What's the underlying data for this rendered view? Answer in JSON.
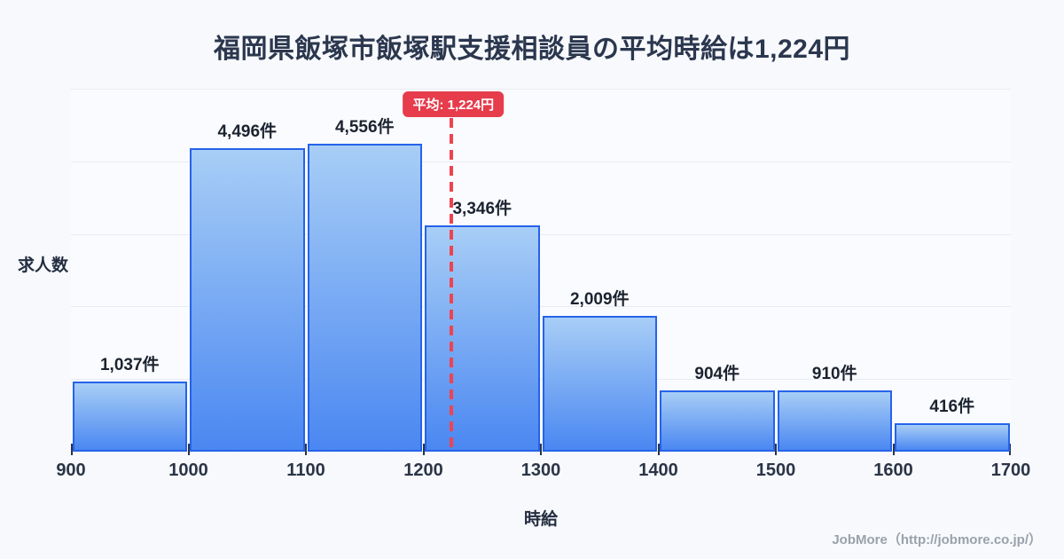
{
  "title": {
    "text": "福岡県飯塚市飯塚駅支援相談員の平均時給は1,224円"
  },
  "chart_data": {
    "type": "bar",
    "subtype": "histogram",
    "title": "福岡県飯塚市飯塚駅支援相談員の平均時給は1,224円",
    "xlabel": "時給",
    "ylabel": "求人数",
    "bin_edges": [
      900,
      1000,
      1100,
      1200,
      1300,
      1400,
      1500,
      1600,
      1700
    ],
    "x_ticks": [
      "900",
      "1000",
      "1100",
      "1200",
      "1300",
      "1400",
      "1500",
      "1600",
      "1700"
    ],
    "values": [
      1037,
      4496,
      4556,
      3346,
      2009,
      904,
      910,
      416
    ],
    "value_labels": [
      "1,037件",
      "4,496件",
      "4,556件",
      "3,346件",
      "2,009件",
      "904件",
      "910件",
      "416件"
    ],
    "mean": 1224,
    "mean_label": "平均: 1,224円",
    "xlim": [
      900,
      1700
    ],
    "ylim": [
      0,
      5370
    ],
    "gridline_count": 5,
    "grid": "horizontal",
    "legend": "none"
  },
  "colors": {
    "background": "#f7f9fc",
    "plot_background": "#fafbfe",
    "bar_gradient_top": "#a8cef6",
    "bar_gradient_bottom": "#4a87f1",
    "bar_border": "#2563eb",
    "gridline": "#e8ecf3",
    "mean_line": "#ee4350",
    "badge_background": "#e63c4b",
    "badge_text": "#ffffff",
    "title_text": "#2b374e",
    "label_text": "#1b2330",
    "tick_text": "#2b3547",
    "footer_text": "#9aa1ac"
  },
  "footer": {
    "text": "JobMore（http://jobmore.co.jp/）"
  }
}
